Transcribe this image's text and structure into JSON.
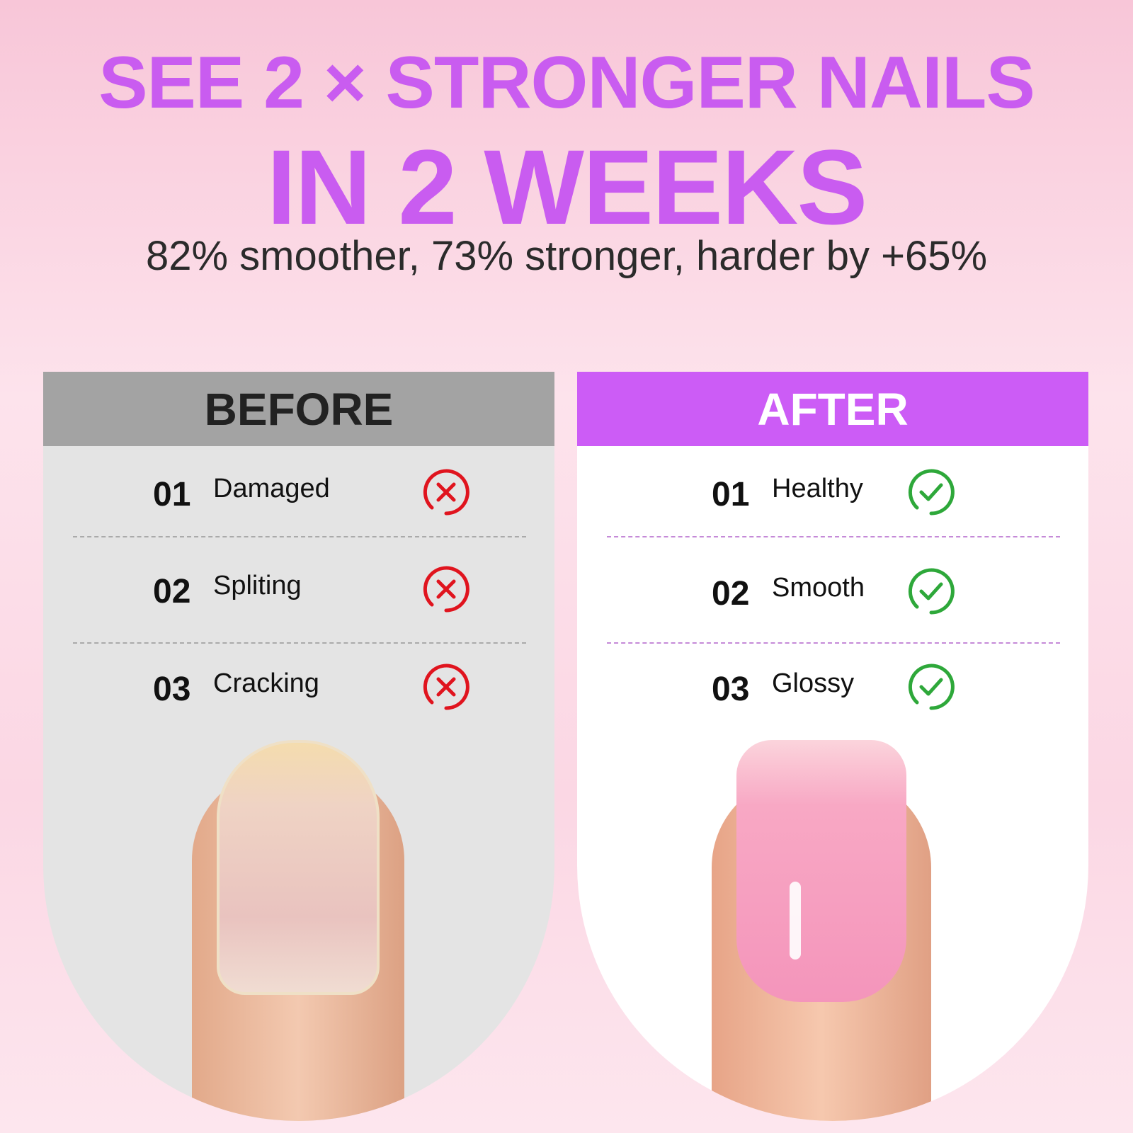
{
  "headline": {
    "line1": "SEE 2 × STRONGER NAILS",
    "line2": "IN 2 WEEKS",
    "subtitle": "82% smoother, 73% stronger, harder by +65%"
  },
  "before": {
    "title": "BEFORE",
    "items": [
      {
        "num": "01",
        "label": "Damaged"
      },
      {
        "num": "02",
        "label": "Spliting"
      },
      {
        "num": "03",
        "label": "Cracking"
      }
    ],
    "icon": "x-circle-icon",
    "icon_color": "#e0141e"
  },
  "after": {
    "title": "AFTER",
    "items": [
      {
        "num": "01",
        "label": "Healthy"
      },
      {
        "num": "02",
        "label": "Smooth"
      },
      {
        "num": "03",
        "label": "Glossy"
      }
    ],
    "icon": "check-circle-icon",
    "icon_color": "#2ea83a"
  },
  "colors": {
    "accent": "#c95cf0",
    "before_header": "#a3a3a3",
    "after_header": "#cc5cf6"
  }
}
